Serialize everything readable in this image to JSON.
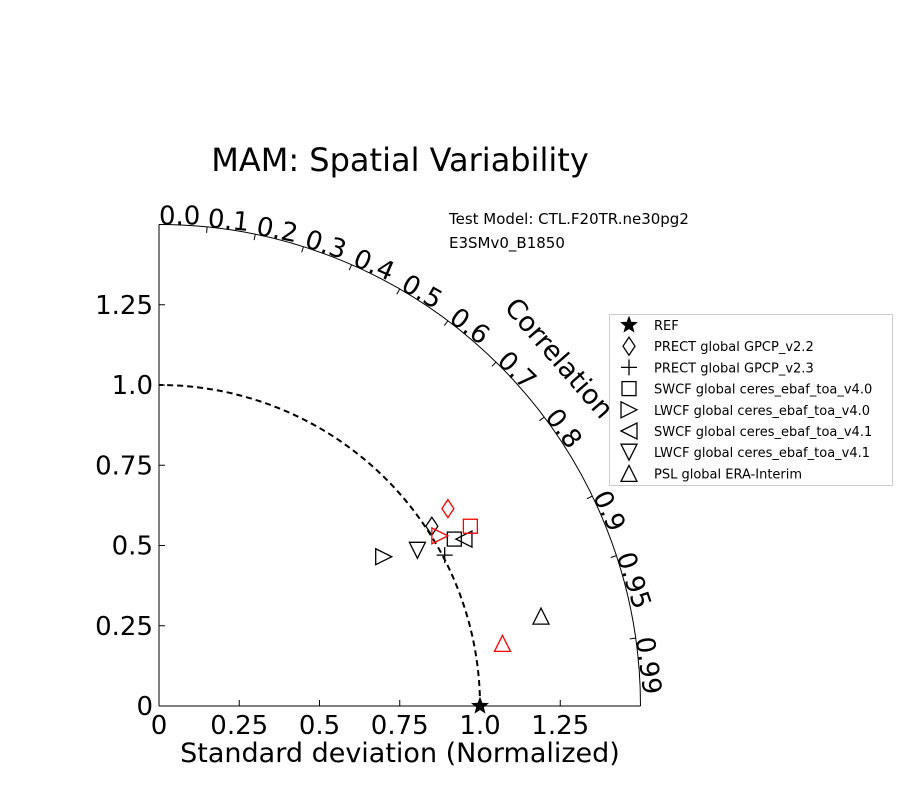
{
  "chart_data": {
    "type": "taylor",
    "title": "MAM: Spatial Variability",
    "xlabel": "Standard deviation (Normalized)",
    "correlation_label": "Correlation",
    "std_range": [
      0,
      1.5
    ],
    "std_ticks": [
      "0",
      "0.25",
      "0.5",
      "0.75",
      "1.0",
      "1.25"
    ],
    "std_tick_values": [
      0,
      0.25,
      0.5,
      0.75,
      1.0,
      1.25
    ],
    "x_ticks": [
      "0",
      "0.25",
      "0.5",
      "0.75",
      "1.0",
      "1.25"
    ],
    "correlation_ticks": [
      "0.0",
      "0.1",
      "0.2",
      "0.3",
      "0.4",
      "0.5",
      "0.6",
      "0.7",
      "0.8",
      "0.9",
      "0.95",
      "0.99"
    ],
    "correlation_tick_values": [
      0.0,
      0.1,
      0.2,
      0.3,
      0.4,
      0.5,
      0.6,
      0.7,
      0.8,
      0.9,
      0.95,
      0.99
    ],
    "reference_std": 1.0,
    "test_model_label": "Test Model: CTL.F20TR.ne30pg2",
    "ref_model_label": "E3SMv0_B1850",
    "colors": {
      "test": "#000000",
      "ref": "#ff0000"
    },
    "legend": [
      {
        "label": "REF",
        "marker": "star"
      },
      {
        "label": "PRECT global GPCP_v2.2",
        "marker": "diamond"
      },
      {
        "label": "PRECT global GPCP_v2.3",
        "marker": "plus"
      },
      {
        "label": "SWCF global ceres_ebaf_toa_v4.0",
        "marker": "square"
      },
      {
        "label": "LWCF global ceres_ebaf_toa_v4.0",
        "marker": "triangle-right"
      },
      {
        "label": "SWCF global ceres_ebaf_toa_v4.1",
        "marker": "triangle-left"
      },
      {
        "label": "LWCF global ceres_ebaf_toa_v4.1",
        "marker": "triangle-down"
      },
      {
        "label": "PSL global ERA-Interim",
        "marker": "triangle-up"
      }
    ],
    "series": [
      {
        "name": "Test Model: CTL.F20TR.ne30pg2",
        "color": "#000000",
        "points": [
          {
            "variable": "PRECT global GPCP_v2.2",
            "marker": "diamond",
            "x": 0.85,
            "y": 0.56
          },
          {
            "variable": "PRECT global GPCP_v2.3",
            "marker": "plus",
            "x": 0.89,
            "y": 0.47
          },
          {
            "variable": "SWCF global ceres_ebaf_toa_v4.0",
            "marker": "square",
            "x": 0.92,
            "y": 0.52
          },
          {
            "variable": "LWCF global ceres_ebaf_toa_v4.0",
            "marker": "triangle-right",
            "x": 0.7,
            "y": 0.465
          },
          {
            "variable": "SWCF global ceres_ebaf_toa_v4.1",
            "marker": "triangle-left",
            "x": 0.95,
            "y": 0.52
          },
          {
            "variable": "LWCF global ceres_ebaf_toa_v4.1",
            "marker": "triangle-down",
            "x": 0.805,
            "y": 0.485
          },
          {
            "variable": "PSL global ERA-Interim",
            "marker": "triangle-up",
            "x": 1.19,
            "y": 0.28
          }
        ]
      },
      {
        "name": "E3SMv0_B1850",
        "color": "#ff0000",
        "points": [
          {
            "variable": "PRECT global GPCP_v2.2",
            "marker": "diamond",
            "x": 0.9,
            "y": 0.615
          },
          {
            "variable": "SWCF global ceres_ebaf_toa_v4.0",
            "marker": "square",
            "x": 0.97,
            "y": 0.56
          },
          {
            "variable": "LWCF global ceres_ebaf_toa_v4.0",
            "marker": "triangle-right",
            "x": 0.875,
            "y": 0.53
          },
          {
            "variable": "PSL global ERA-Interim",
            "marker": "triangle-up",
            "x": 1.07,
            "y": 0.195
          }
        ]
      }
    ]
  }
}
